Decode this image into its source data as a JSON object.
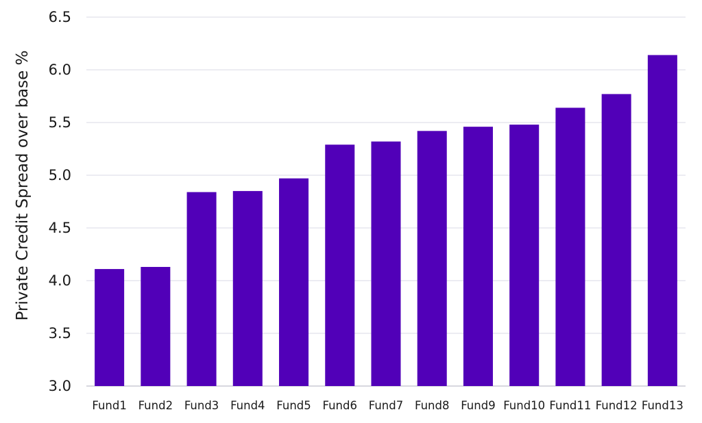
{
  "chart_data": {
    "type": "bar",
    "ylabel": "Private Credit Spread over base %",
    "xlabel": "",
    "title": "",
    "ylim": [
      3.0,
      6.5
    ],
    "yticks": [
      3.0,
      3.5,
      4.0,
      4.5,
      5.0,
      5.5,
      6.0,
      6.5
    ],
    "ytick_labels": [
      "3.0",
      "3.5",
      "4.0",
      "4.5",
      "5.0",
      "5.5",
      "6.0",
      "6.5"
    ],
    "grid": true,
    "categories": [
      "Fund1",
      "Fund2",
      "Fund3",
      "Fund4",
      "Fund5",
      "Fund6",
      "Fund7",
      "Fund8",
      "Fund9",
      "Fund10",
      "Fund11",
      "Fund12",
      "Fund13"
    ],
    "values": [
      4.11,
      4.13,
      4.84,
      4.85,
      4.97,
      5.29,
      5.32,
      5.42,
      5.46,
      5.48,
      5.64,
      5.77,
      6.14
    ],
    "bar_color": "#5100b8",
    "grid_color": "#d9d9e6"
  }
}
